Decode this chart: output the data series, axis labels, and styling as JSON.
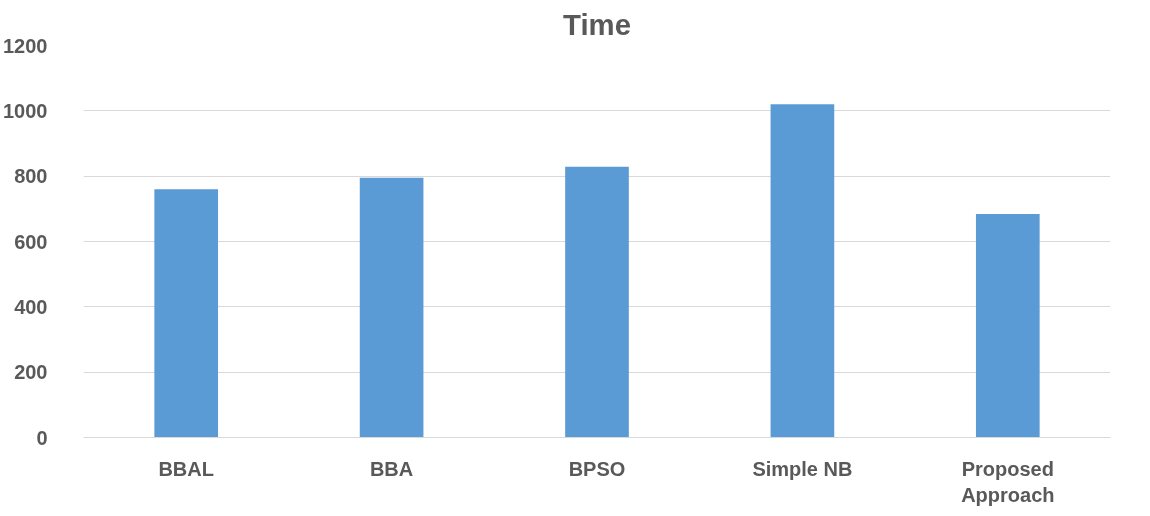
{
  "chart_data": {
    "type": "bar",
    "title": "Time",
    "categories": [
      "BBAL",
      "BBA",
      "BPSO",
      "Simple NB",
      "Proposed Approach"
    ],
    "values": [
      760,
      795,
      829,
      1020,
      684
    ],
    "color": "#5b9bd5",
    "ylim": [
      0,
      1200
    ],
    "yticks": [
      0,
      200,
      400,
      600,
      800,
      1000,
      1200
    ],
    "grid": "y"
  }
}
